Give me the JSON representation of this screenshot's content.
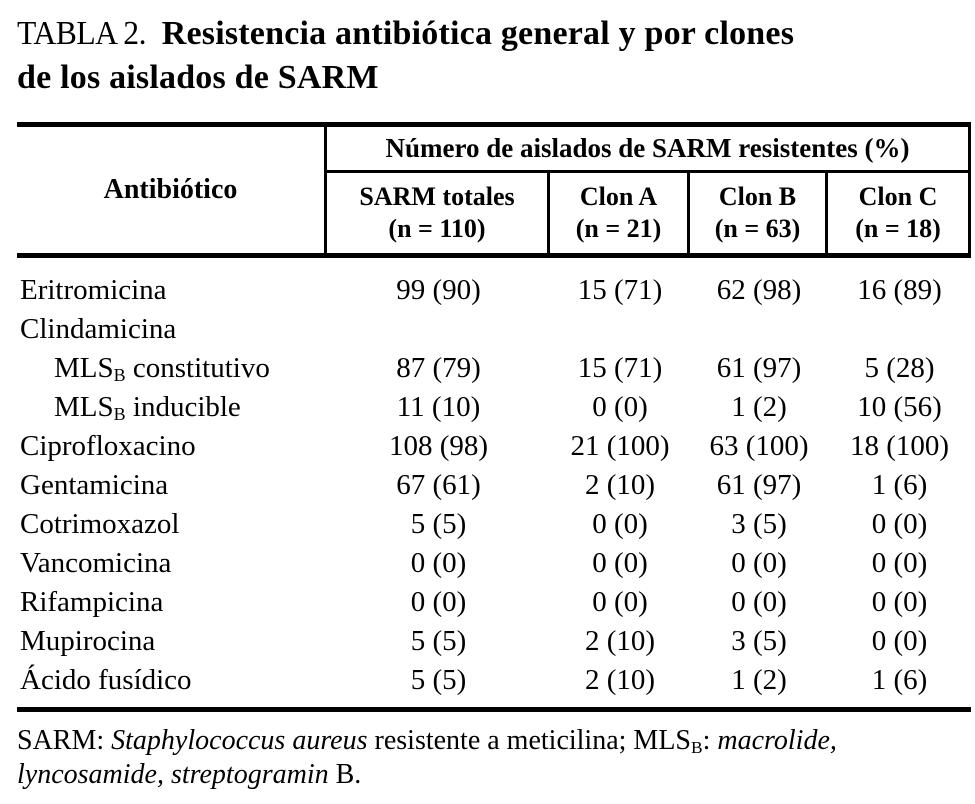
{
  "title": {
    "tag": "TABLA 2.",
    "line1": "Resistencia antibiótica general y por clones",
    "line2": "de los aislados de SARM"
  },
  "table": {
    "antibiotic_header": "Antibiótico",
    "span_header": "Número de aislados de SARM resistentes (%)",
    "columns": [
      {
        "name": "SARM totales",
        "n": "(n = 110)"
      },
      {
        "name": "Clon A",
        "n": "(n = 21)"
      },
      {
        "name": "Clon B",
        "n": "(n = 63)"
      },
      {
        "name": "Clon C",
        "n": "(n = 18)"
      }
    ],
    "rows": [
      {
        "label": "Eritromicina",
        "indent": false,
        "values": [
          "99 (90)",
          "15 (71)",
          "62 (98)",
          "16 (89)"
        ]
      },
      {
        "label": "Clindamicina",
        "indent": false,
        "values": [
          "",
          "",
          "",
          ""
        ]
      },
      {
        "label": "MLS_B constitutivo",
        "indent": true,
        "values": [
          "87 (79)",
          "15 (71)",
          "61 (97)",
          "5 (28)"
        ]
      },
      {
        "label": "MLS_B inducible",
        "indent": true,
        "values": [
          "11 (10)",
          "0 (0)",
          "1 (2)",
          "10 (56)"
        ]
      },
      {
        "label": "Ciprofloxacino",
        "indent": false,
        "values": [
          "108 (98)",
          "21 (100)",
          "63 (100)",
          "18 (100)"
        ]
      },
      {
        "label": "Gentamicina",
        "indent": false,
        "values": [
          "67 (61)",
          "2 (10)",
          "61 (97)",
          "1 (6)"
        ]
      },
      {
        "label": "Cotrimoxazol",
        "indent": false,
        "values": [
          "5 (5)",
          "0 (0)",
          "3 (5)",
          "0 (0)"
        ]
      },
      {
        "label": "Vancomicina",
        "indent": false,
        "values": [
          "0 (0)",
          "0 (0)",
          "0 (0)",
          "0 (0)"
        ]
      },
      {
        "label": "Rifampicina",
        "indent": false,
        "values": [
          "0 (0)",
          "0 (0)",
          "0 (0)",
          "0 (0)"
        ]
      },
      {
        "label": "Mupirocina",
        "indent": false,
        "values": [
          "5 (5)",
          "2 (10)",
          "3 (5)",
          "0 (0)"
        ]
      },
      {
        "label": "Ácido fusídico",
        "indent": false,
        "values": [
          "5 (5)",
          "2 (10)",
          "1 (2)",
          "1 (6)"
        ]
      }
    ]
  },
  "footnote": {
    "segments": [
      {
        "text": "SARM: ",
        "style": "normal"
      },
      {
        "text": "Staphylococcus aureus",
        "style": "italic"
      },
      {
        "text": " resistente a meticilina; MLS",
        "style": "normal"
      },
      {
        "text": "B",
        "style": "subscript"
      },
      {
        "text": ": ",
        "style": "normal"
      },
      {
        "text": "macrolide,",
        "style": "italic"
      },
      {
        "text": "",
        "style": "break"
      },
      {
        "text": "lyncosamide, streptogramin",
        "style": "italic"
      },
      {
        "text": " B.",
        "style": "normal"
      }
    ]
  }
}
